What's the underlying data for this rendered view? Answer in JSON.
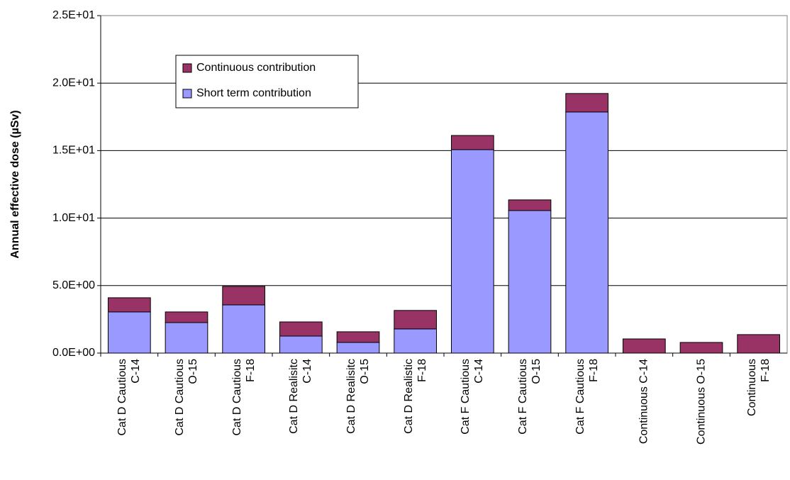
{
  "chart_data": {
    "type": "stacked_bar",
    "y_label": "Annual effective dose (µSv)",
    "categories": [
      "Cat D Cautious\nC-14",
      "Cat D Cautious\nO-15",
      "Cat D Cautious\nF-18",
      "Cat D Realisitc\nC-14",
      "Cat D Realisitc\nO-15",
      "Cat D Realistic\nF-18",
      "Cat F Cautious\nC-14",
      "Cat F Cautious\nO-15",
      "Cat F Cautious\nF-18",
      "Continuous C-14",
      "Continuous O-15",
      "Continuous F-18"
    ],
    "series": [
      {
        "name": "Short term contribution",
        "color": "#9999ff",
        "values": [
          3.05,
          2.26,
          3.57,
          1.26,
          0.79,
          1.79,
          15.07,
          10.56,
          17.86,
          0,
          0,
          0
        ]
      },
      {
        "name": "Continuous contribution",
        "color": "#993366",
        "values": [
          1.05,
          0.79,
          1.37,
          1.05,
          0.79,
          1.37,
          1.05,
          0.79,
          1.37,
          1.05,
          0.79,
          1.37
        ]
      }
    ],
    "ylim": [
      0,
      25
    ],
    "yticks": [
      {
        "value": 0,
        "label": "0.0E+00"
      },
      {
        "value": 5,
        "label": "5.0E+00"
      },
      {
        "value": 10,
        "label": "1.0E+01"
      },
      {
        "value": 15,
        "label": "1.5E+01"
      },
      {
        "value": 20,
        "label": "2.0E+01"
      },
      {
        "value": 25,
        "label": "2.5E+01"
      }
    ],
    "grid": true
  }
}
